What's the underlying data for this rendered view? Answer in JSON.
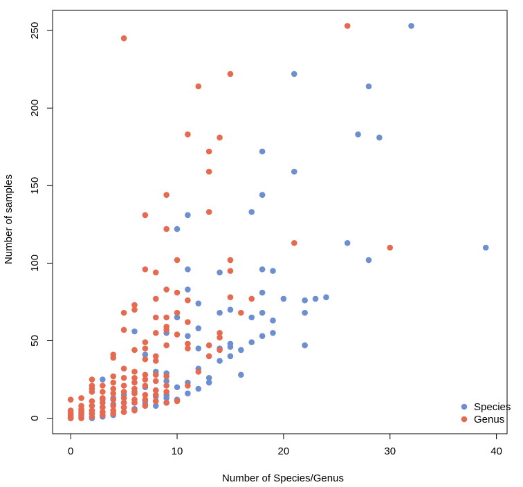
{
  "chart_data": {
    "type": "scatter",
    "title": "",
    "xlabel": "Number of Species/Genus",
    "ylabel": "Number of samples",
    "xlim": [
      -1.7,
      41
    ],
    "ylim": [
      -10,
      263
    ],
    "xticks": [
      0,
      10,
      20,
      30,
      40
    ],
    "yticks": [
      0,
      50,
      100,
      150,
      200,
      250
    ],
    "grid": false,
    "legend_position": "bottom-right",
    "series": [
      {
        "name": "Species",
        "color": "#6b8fd0",
        "points": [
          [
            32,
            253
          ],
          [
            21,
            222
          ],
          [
            28,
            214
          ],
          [
            27,
            183
          ],
          [
            29,
            181
          ],
          [
            18,
            172
          ],
          [
            21,
            159
          ],
          [
            18,
            144
          ],
          [
            17,
            133
          ],
          [
            11,
            131
          ],
          [
            10,
            122
          ],
          [
            26,
            113
          ],
          [
            39,
            110
          ],
          [
            28,
            102
          ],
          [
            11,
            96
          ],
          [
            18,
            96
          ],
          [
            19,
            95
          ],
          [
            14,
            94
          ],
          [
            11,
            83
          ],
          [
            18,
            81
          ],
          [
            24,
            78
          ],
          [
            20,
            77
          ],
          [
            23,
            77
          ],
          [
            22,
            76
          ],
          [
            12,
            74
          ],
          [
            15,
            70
          ],
          [
            14,
            68
          ],
          [
            18,
            68
          ],
          [
            22,
            68
          ],
          [
            10,
            65
          ],
          [
            17,
            65
          ],
          [
            19,
            63
          ],
          [
            12,
            58
          ],
          [
            6,
            56
          ],
          [
            9,
            55
          ],
          [
            19,
            55
          ],
          [
            11,
            53
          ],
          [
            18,
            53
          ],
          [
            17,
            49
          ],
          [
            15,
            48
          ],
          [
            22,
            47
          ],
          [
            15,
            46
          ],
          [
            14,
            45
          ],
          [
            12,
            45
          ],
          [
            16,
            44
          ],
          [
            7,
            41
          ],
          [
            15,
            40
          ],
          [
            14,
            37
          ],
          [
            8,
            30
          ],
          [
            12,
            32
          ],
          [
            9,
            29
          ],
          [
            16,
            28
          ],
          [
            13,
            26
          ],
          [
            3,
            25
          ],
          [
            9,
            24
          ],
          [
            11,
            23
          ],
          [
            13,
            23
          ],
          [
            10,
            20
          ],
          [
            7,
            20
          ],
          [
            12,
            19
          ],
          [
            8,
            18
          ],
          [
            6,
            17
          ],
          [
            11,
            16
          ],
          [
            5,
            15
          ],
          [
            9,
            15
          ],
          [
            8,
            14
          ],
          [
            4,
            13
          ],
          [
            9,
            13
          ],
          [
            3,
            12
          ],
          [
            10,
            12
          ],
          [
            7,
            11
          ],
          [
            8,
            11
          ],
          [
            5,
            10
          ],
          [
            6,
            10
          ],
          [
            9,
            10
          ],
          [
            4,
            9
          ],
          [
            7,
            9
          ],
          [
            2,
            8
          ],
          [
            8,
            8
          ],
          [
            3,
            7
          ],
          [
            5,
            7
          ],
          [
            6,
            6
          ],
          [
            1,
            5
          ],
          [
            2,
            5
          ],
          [
            4,
            5
          ],
          [
            0,
            4
          ],
          [
            3,
            4
          ],
          [
            5,
            4
          ],
          [
            1,
            3
          ],
          [
            2,
            3
          ],
          [
            0,
            2
          ],
          [
            4,
            2
          ],
          [
            1,
            1
          ],
          [
            3,
            1
          ],
          [
            0,
            0
          ],
          [
            2,
            0
          ]
        ]
      },
      {
        "name": "Genus",
        "color": "#e66a50",
        "points": [
          [
            26,
            253
          ],
          [
            5,
            245
          ],
          [
            15,
            222
          ],
          [
            12,
            214
          ],
          [
            11,
            183
          ],
          [
            14,
            181
          ],
          [
            13,
            172
          ],
          [
            13,
            159
          ],
          [
            9,
            144
          ],
          [
            13,
            133
          ],
          [
            7,
            131
          ],
          [
            9,
            122
          ],
          [
            21,
            113
          ],
          [
            30,
            110
          ],
          [
            10,
            102
          ],
          [
            15,
            102
          ],
          [
            7,
            96
          ],
          [
            8,
            94
          ],
          [
            15,
            95
          ],
          [
            9,
            83
          ],
          [
            10,
            81
          ],
          [
            15,
            78
          ],
          [
            11,
            76
          ],
          [
            8,
            77
          ],
          [
            17,
            77
          ],
          [
            6,
            73
          ],
          [
            6,
            70
          ],
          [
            5,
            68
          ],
          [
            10,
            68
          ],
          [
            16,
            68
          ],
          [
            9,
            65
          ],
          [
            8,
            65
          ],
          [
            11,
            62
          ],
          [
            9,
            59
          ],
          [
            5,
            57
          ],
          [
            9,
            57
          ],
          [
            8,
            55
          ],
          [
            14,
            55
          ],
          [
            10,
            54
          ],
          [
            14,
            52
          ],
          [
            7,
            49
          ],
          [
            11,
            48
          ],
          [
            9,
            47
          ],
          [
            13,
            47
          ],
          [
            7,
            45
          ],
          [
            11,
            45
          ],
          [
            6,
            44
          ],
          [
            14,
            44
          ],
          [
            4,
            41
          ],
          [
            4,
            39
          ],
          [
            8,
            40
          ],
          [
            7,
            38
          ],
          [
            8,
            37
          ],
          [
            13,
            40
          ],
          [
            5,
            32
          ],
          [
            6,
            30
          ],
          [
            12,
            30
          ],
          [
            7,
            28
          ],
          [
            8,
            28
          ],
          [
            9,
            27
          ],
          [
            2,
            25
          ],
          [
            4,
            27
          ],
          [
            5,
            26
          ],
          [
            6,
            26
          ],
          [
            7,
            25
          ],
          [
            8,
            24
          ],
          [
            4,
            23
          ],
          [
            6,
            23
          ],
          [
            2,
            21
          ],
          [
            3,
            21
          ],
          [
            5,
            21
          ],
          [
            7,
            21
          ],
          [
            9,
            21
          ],
          [
            11,
            21
          ],
          [
            2,
            19
          ],
          [
            4,
            19
          ],
          [
            6,
            19
          ],
          [
            8,
            18
          ],
          [
            2,
            17
          ],
          [
            3,
            17
          ],
          [
            5,
            17
          ],
          [
            9,
            17
          ],
          [
            4,
            16
          ],
          [
            6,
            16
          ],
          [
            7,
            15
          ],
          [
            8,
            15
          ],
          [
            1,
            13
          ],
          [
            3,
            13
          ],
          [
            5,
            13
          ],
          [
            0,
            12
          ],
          [
            4,
            12
          ],
          [
            6,
            12
          ],
          [
            7,
            12
          ],
          [
            2,
            11
          ],
          [
            8,
            11
          ],
          [
            10,
            11
          ],
          [
            3,
            10
          ],
          [
            5,
            10
          ],
          [
            6,
            10
          ],
          [
            9,
            10
          ],
          [
            1,
            8
          ],
          [
            2,
            8
          ],
          [
            4,
            8
          ],
          [
            7,
            8
          ],
          [
            3,
            7
          ],
          [
            5,
            7
          ],
          [
            1,
            6
          ],
          [
            0,
            5
          ],
          [
            2,
            5
          ],
          [
            4,
            5
          ],
          [
            6,
            5
          ],
          [
            1,
            4
          ],
          [
            3,
            4
          ],
          [
            5,
            4
          ],
          [
            0,
            3
          ],
          [
            2,
            3
          ],
          [
            4,
            3
          ],
          [
            1,
            2
          ],
          [
            3,
            2
          ],
          [
            0,
            1
          ],
          [
            2,
            1
          ],
          [
            0,
            0
          ],
          [
            1,
            0
          ]
        ]
      }
    ]
  }
}
